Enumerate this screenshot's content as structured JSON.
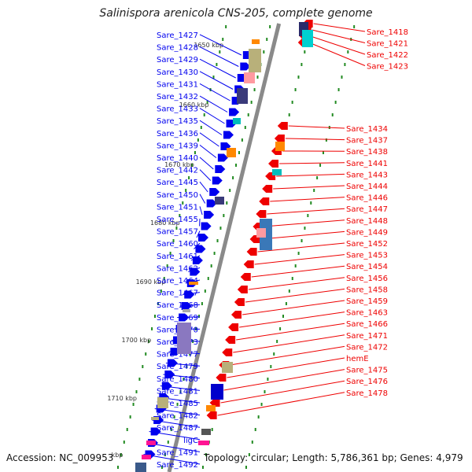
{
  "title": "Salinispora arenicola CNS-205, complete genome",
  "footer": {
    "accession": "Accession: NC_009953",
    "topology": "Topology: circular; Length: 5,786,361 bp; Genes: 4,979"
  },
  "scale_ticks": [
    "1650 kbp",
    "1660 kbp",
    "1670 kbp",
    "1680 kbp",
    "1690 kbp",
    "1700 kbp",
    "1710 kbp",
    "kbp"
  ],
  "left_genes": [
    "Sare_1427",
    "Sare_1428",
    "Sare_1429",
    "Sare_1430",
    "Sare_1431",
    "Sare_1432",
    "Sare_1433",
    "Sare_1435",
    "Sare_1436",
    "Sare_1439",
    "Sare_1440",
    "Sare_1442",
    "Sare_1445",
    "Sare_1450",
    "Sare_1451",
    "Sare_1455",
    "Sare_1457",
    "Sare_1460",
    "Sare_1461",
    "Sare_1462",
    "Sare_1464",
    "Sare_1467",
    "Sare_1468",
    "Sare_1469",
    "Sare_1470",
    "Sare_1473",
    "Sare_1477",
    "Sare_1479",
    "Sare_1480",
    "Sare_1481",
    "Sare_1485",
    "Sare_1482",
    "Sare_1487",
    "ligC",
    "Sare_1491",
    "Sare_1492"
  ],
  "right_genes": [
    "Sare_1418",
    "Sare_1421",
    "Sare_1422",
    "Sare_1423",
    "Sare_1434",
    "Sare_1437",
    "Sare_1438",
    "Sare_1441",
    "Sare_1443",
    "Sare_1444",
    "Sare_1446",
    "Sare_1447",
    "Sare_1448",
    "Sare_1449",
    "Sare_1452",
    "Sare_1453",
    "Sare_1454",
    "Sare_1456",
    "Sare_1458",
    "Sare_1459",
    "Sare_1463",
    "Sare_1466",
    "Sare_1471",
    "Sare_1472",
    "hemE",
    "Sare_1475",
    "Sare_1476",
    "Sare_1478"
  ],
  "colors": {
    "forward": "#0000ee",
    "reverse": "#ee0000",
    "backbone": "#8a8a8a",
    "gc_dots": "#228b22",
    "tick": "#333333"
  }
}
